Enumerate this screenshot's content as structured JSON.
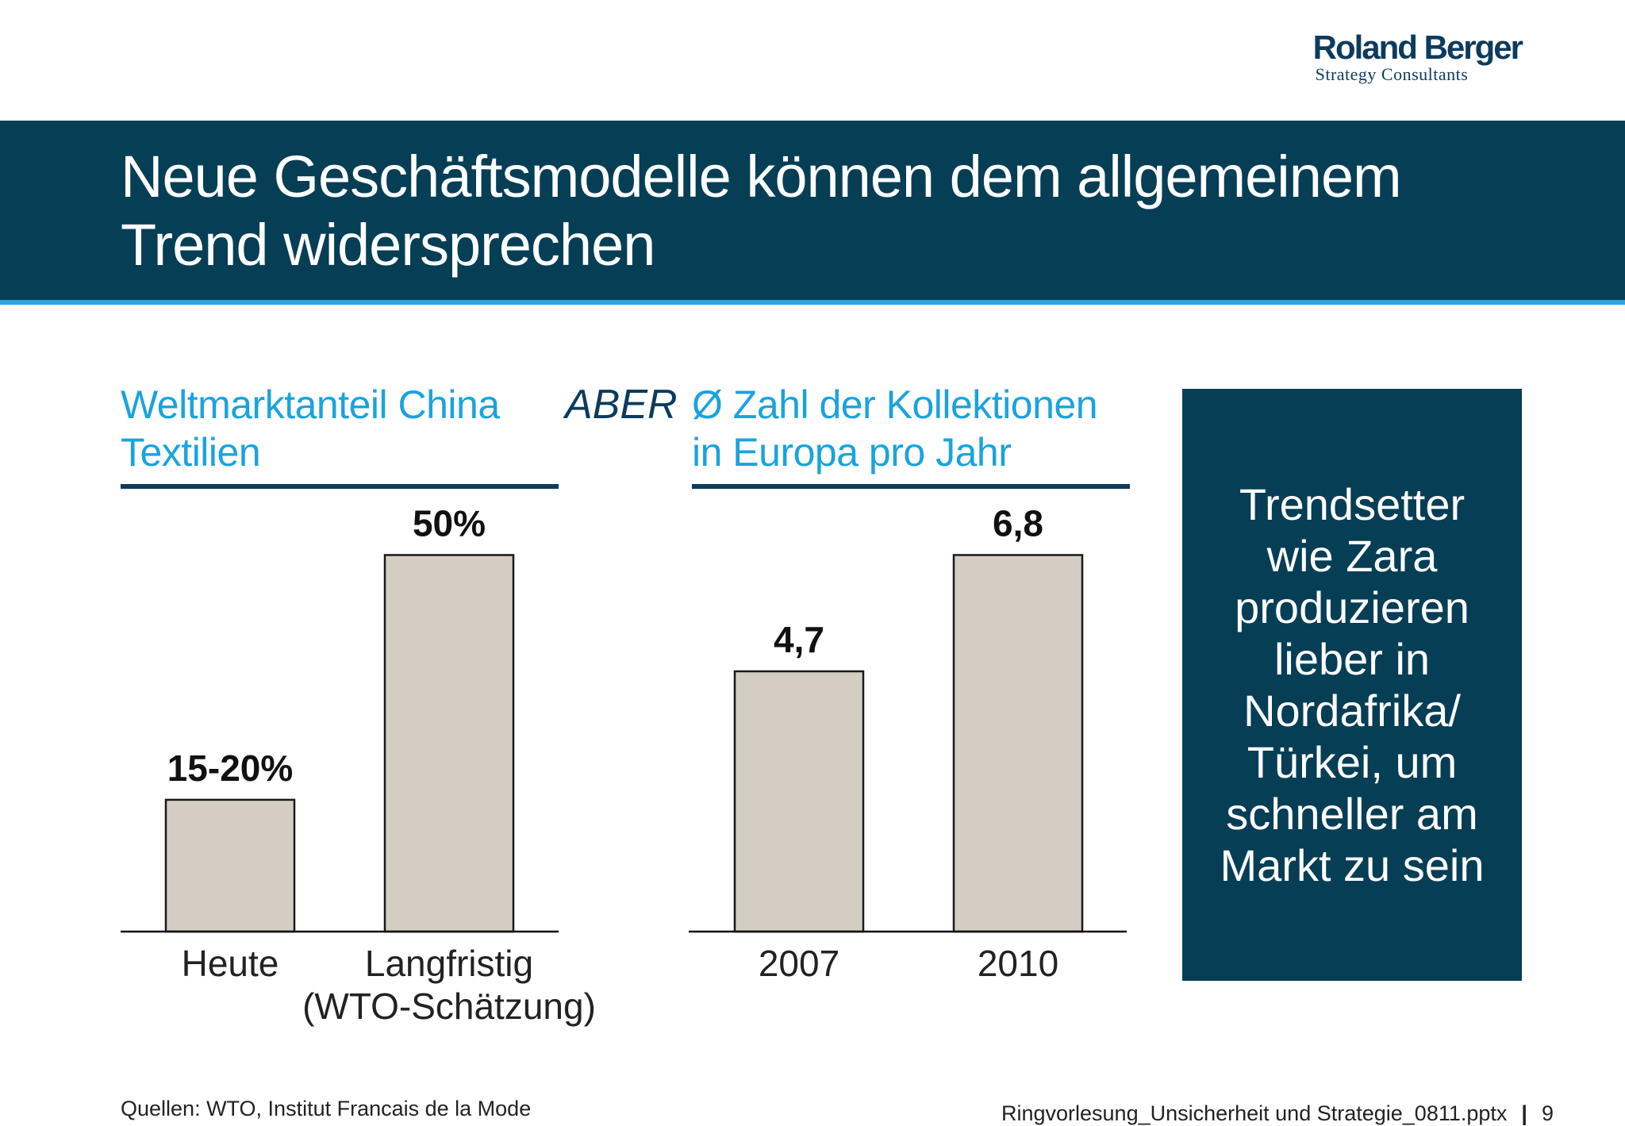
{
  "logo": {
    "name": "Roland Berger",
    "subtitle": "Strategy Consultants"
  },
  "title": "Neue Geschäftsmodelle können dem allgemeinem Trend widersprechen",
  "colors": {
    "band": "#063e55",
    "accent_line": "#2aa4dc",
    "subhead": "#1aa3dd",
    "bar_fill": "#d3cdc3",
    "bar_stroke": "#1a1a1a"
  },
  "aber_label": "ABER",
  "side_box": {
    "text": "Trendsetter wie Zara produzieren lieber in Nordafrika/ Türkei, um schneller am Markt zu sein"
  },
  "footer": {
    "sources": "Quellen: WTO, Institut Francais de la Mode",
    "filename": "Ringvorlesung_Unsicherheit und Strategie_0811.pptx",
    "separator": "|",
    "page": "9"
  },
  "chart_data": [
    {
      "type": "bar",
      "title": "Weltmarktanteil China Textilien",
      "categories": [
        "Heute",
        "Langfristig (WTO-Schätzung)"
      ],
      "values": [
        17.5,
        50
      ],
      "value_labels": [
        "15-20%",
        "50%"
      ],
      "ylim": [
        0,
        55
      ]
    },
    {
      "type": "bar",
      "title": "Ø  Zahl der Kollektionen in Europa pro Jahr",
      "categories": [
        "2007",
        "2010"
      ],
      "values": [
        4.7,
        6.8
      ],
      "value_labels": [
        "4,7",
        "6,8"
      ],
      "ylim": [
        0,
        7.48
      ]
    }
  ]
}
